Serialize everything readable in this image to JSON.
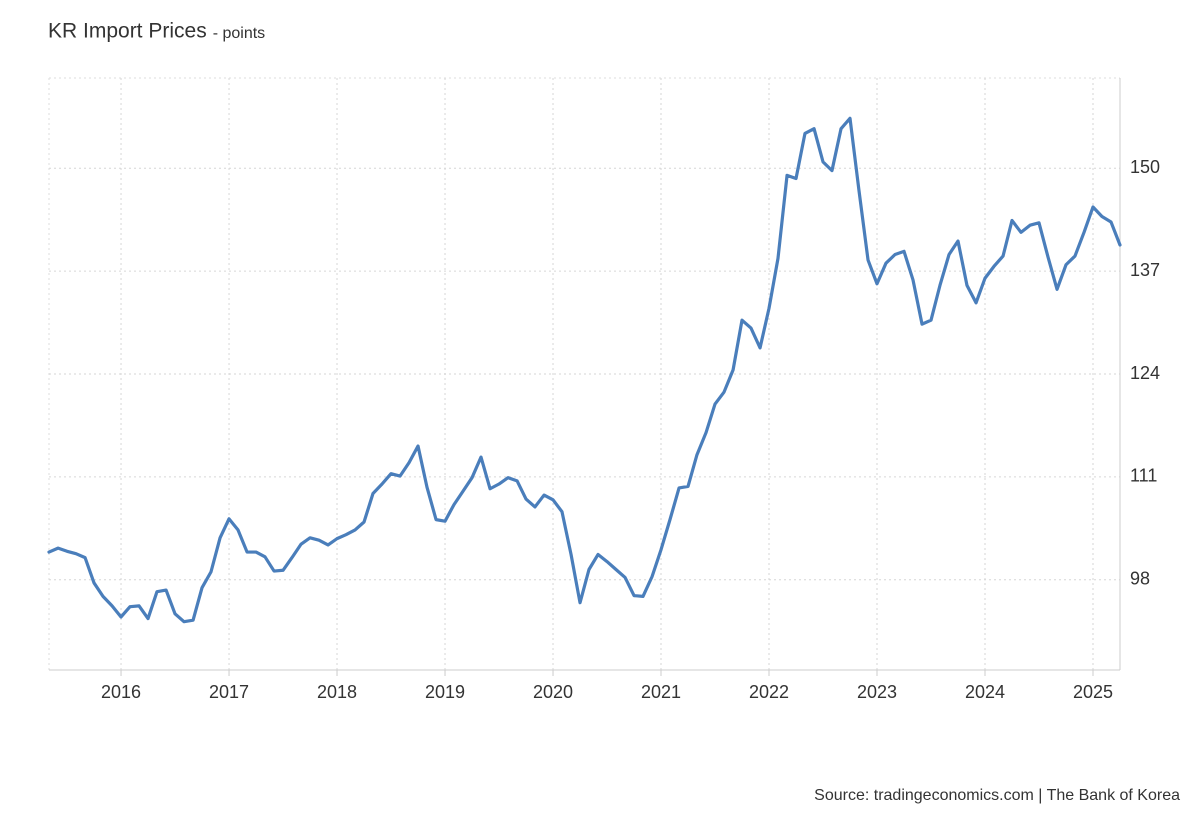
{
  "chart_data": {
    "type": "line",
    "title": "KR Import Prices",
    "subtitle": "- points",
    "source": "Source: tradingeconomics.com | The Bank of Korea",
    "xlim": [
      2015.333,
      2025.25
    ],
    "xticks": [
      2016,
      2017,
      2018,
      2019,
      2020,
      2021,
      2022,
      2023,
      2024,
      2025
    ],
    "ylim": [
      86.6,
      161.4
    ],
    "yticks": [
      98,
      111,
      124,
      137,
      150
    ],
    "grid": true,
    "x": [
      2015.333,
      2015.417,
      2015.5,
      2015.583,
      2015.667,
      2015.75,
      2015.833,
      2015.917,
      2016,
      2016.083,
      2016.167,
      2016.25,
      2016.333,
      2016.417,
      2016.5,
      2016.583,
      2016.667,
      2016.75,
      2016.833,
      2016.917,
      2017,
      2017.083,
      2017.167,
      2017.25,
      2017.333,
      2017.417,
      2017.5,
      2017.583,
      2017.667,
      2017.75,
      2017.833,
      2017.917,
      2018,
      2018.083,
      2018.167,
      2018.25,
      2018.333,
      2018.417,
      2018.5,
      2018.583,
      2018.667,
      2018.75,
      2018.833,
      2018.917,
      2019,
      2019.083,
      2019.167,
      2019.25,
      2019.333,
      2019.417,
      2019.5,
      2019.583,
      2019.667,
      2019.75,
      2019.833,
      2019.917,
      2020,
      2020.083,
      2020.167,
      2020.25,
      2020.333,
      2020.417,
      2020.5,
      2020.583,
      2020.667,
      2020.75,
      2020.833,
      2020.917,
      2021,
      2021.083,
      2021.167,
      2021.25,
      2021.333,
      2021.417,
      2021.5,
      2021.583,
      2021.667,
      2021.75,
      2021.833,
      2021.917,
      2022,
      2022.083,
      2022.167,
      2022.25,
      2022.333,
      2022.417,
      2022.5,
      2022.583,
      2022.667,
      2022.75,
      2022.833,
      2022.917,
      2023,
      2023.083,
      2023.167,
      2023.25,
      2023.333,
      2023.417,
      2023.5,
      2023.583,
      2023.667,
      2023.75,
      2023.833,
      2023.917,
      2024,
      2024.083,
      2024.167,
      2024.25,
      2024.333,
      2024.417,
      2024.5,
      2024.583,
      2024.667,
      2024.75,
      2024.833,
      2024.917,
      2025,
      2025.083,
      2025.167,
      2025.25
    ],
    "series": [
      {
        "name": "KR Import Prices",
        "color": "#4a7ebb",
        "values": [
          101.5,
          102.0,
          101.6,
          101.3,
          100.8,
          97.6,
          95.9,
          94.7,
          93.3,
          94.6,
          94.7,
          93.1,
          96.5,
          96.7,
          93.7,
          92.7,
          92.9,
          97.0,
          99.0,
          103.3,
          105.7,
          104.3,
          101.5,
          101.5,
          100.9,
          99.1,
          99.2,
          100.8,
          102.5,
          103.3,
          103.0,
          102.4,
          103.2,
          103.7,
          104.3,
          105.3,
          108.9,
          110.1,
          111.4,
          111.1,
          112.8,
          114.9,
          109.7,
          105.6,
          105.4,
          107.5,
          109.2,
          110.9,
          113.5,
          109.5,
          110.1,
          110.9,
          110.5,
          108.2,
          107.2,
          108.7,
          108.1,
          106.6,
          101.2,
          95.1,
          99.3,
          101.2,
          100.3,
          99.3,
          98.3,
          96.0,
          95.9,
          98.4,
          101.8,
          105.6,
          109.6,
          109.8,
          113.8,
          116.6,
          120.2,
          121.7,
          124.5,
          130.8,
          129.8,
          127.3,
          132.3,
          138.6,
          149.1,
          148.7,
          154.4,
          155.0,
          150.8,
          149.7,
          155.0,
          156.3,
          147.2,
          138.4,
          135.4,
          138.0,
          139.1,
          139.5,
          135.9,
          130.3,
          130.8,
          135.2,
          139.1,
          140.8,
          135.2,
          133.0,
          136.1,
          137.6,
          138.9,
          143.4,
          141.9,
          142.8,
          143.1,
          138.8,
          134.7,
          137.8,
          138.9,
          141.9,
          145.1,
          143.9,
          143.2,
          140.3
        ]
      }
    ]
  }
}
